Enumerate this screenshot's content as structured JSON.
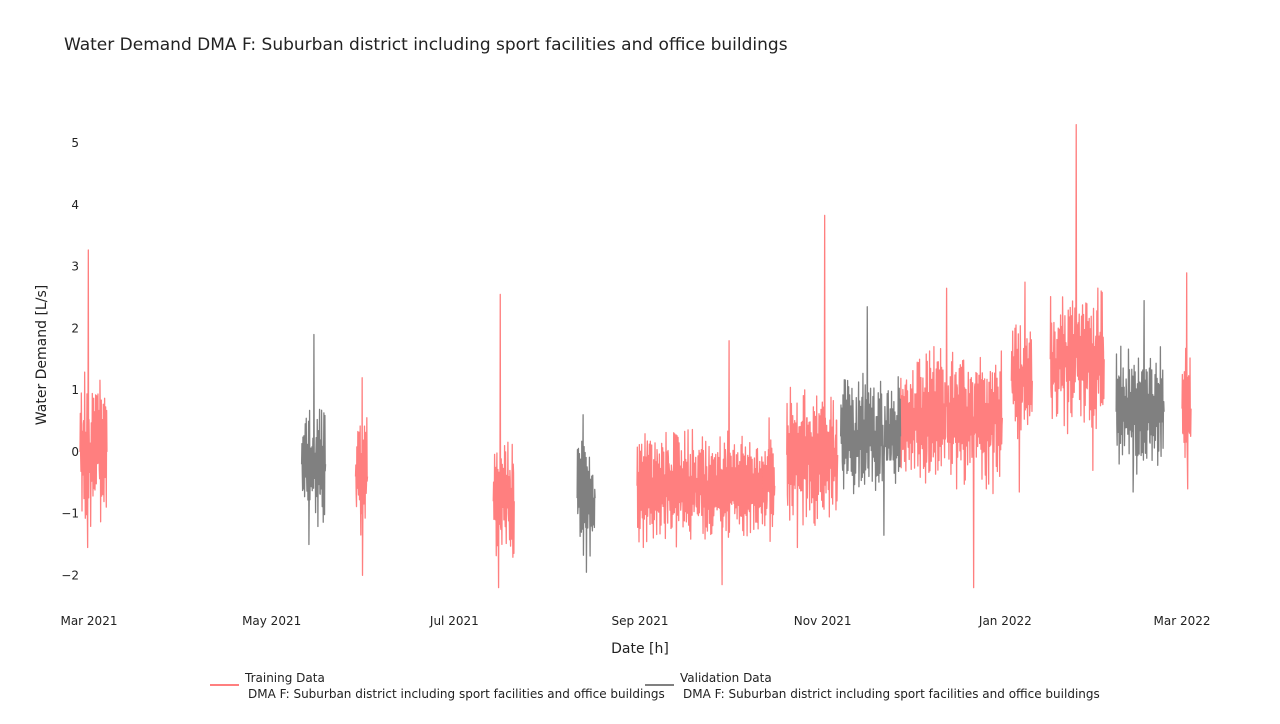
{
  "chart_data": {
    "type": "line",
    "title": "Water Demand DMA F: Suburban district including sport facilities and office buildings",
    "xlabel": "Date [h]",
    "ylabel": "Water Demand [L/s]",
    "x_range": [
      "2021-02-26",
      "2022-03-07"
    ],
    "ylim": [
      -2.4,
      5.7
    ],
    "x_ticks": [
      {
        "date": "2021-03-01",
        "label": "Mar 2021"
      },
      {
        "date": "2021-05-01",
        "label": "May 2021"
      },
      {
        "date": "2021-07-01",
        "label": "Jul 2021"
      },
      {
        "date": "2021-09-01",
        "label": "Sep 2021"
      },
      {
        "date": "2021-11-01",
        "label": "Nov 2021"
      },
      {
        "date": "2022-01-01",
        "label": "Jan 2022"
      },
      {
        "date": "2022-03-01",
        "label": "Mar 2022"
      }
    ],
    "y_ticks": [
      -2,
      -1,
      0,
      1,
      2,
      3,
      4,
      5
    ],
    "grid": false,
    "legend_position": "bottom",
    "series": [
      {
        "name": "Training Data",
        "subtitle": "DMA F: Suburban district including sport facilities and office buildings",
        "color": "#ff7f7f",
        "segments": [
          {
            "start": "2021-02-26",
            "end": "2021-03-07",
            "min": -1.55,
            "max": 3.27,
            "base": 0.0,
            "amp": 1.0
          },
          {
            "start": "2021-05-29",
            "end": "2021-06-02",
            "min": -2.0,
            "max": 1.2,
            "base": -0.4,
            "amp": 0.8
          },
          {
            "start": "2021-07-14",
            "end": "2021-07-21",
            "min": -2.2,
            "max": 2.55,
            "base": -0.8,
            "amp": 0.8
          },
          {
            "start": "2021-08-31",
            "end": "2021-10-12",
            "min": -2.15,
            "max": 1.8,
            "base": -0.55,
            "amp": 0.75
          },
          {
            "start": "2021-10-12",
            "end": "2021-10-16",
            "min": -1.45,
            "max": 0.55,
            "base": -0.55,
            "amp": 0.6
          },
          {
            "start": "2021-10-20",
            "end": "2021-11-06",
            "min": -1.55,
            "max": 3.83,
            "base": -0.05,
            "amp": 0.9
          },
          {
            "start": "2021-11-27",
            "end": "2021-12-31",
            "min": -2.2,
            "max": 2.65,
            "base": 0.55,
            "amp": 0.9
          },
          {
            "start": "2022-01-03",
            "end": "2022-01-10",
            "min": -0.65,
            "max": 2.75,
            "base": 1.15,
            "amp": 0.75
          },
          {
            "start": "2022-01-16",
            "end": "2022-02-03",
            "min": -0.3,
            "max": 5.3,
            "base": 1.5,
            "amp": 0.9
          },
          {
            "start": "2022-03-01",
            "end": "2022-03-04",
            "min": -0.6,
            "max": 2.9,
            "base": 0.7,
            "amp": 0.8
          }
        ]
      },
      {
        "name": "Validation Data",
        "subtitle": "DMA F: Suburban district including sport facilities and office buildings",
        "color": "#808080",
        "segments": [
          {
            "start": "2021-05-11",
            "end": "2021-05-19",
            "min": -1.5,
            "max": 1.9,
            "base": -0.2,
            "amp": 0.75
          },
          {
            "start": "2021-08-11",
            "end": "2021-08-17",
            "min": -1.95,
            "max": 0.6,
            "base": -0.75,
            "amp": 0.75
          },
          {
            "start": "2021-11-07",
            "end": "2021-11-27",
            "min": -1.35,
            "max": 2.35,
            "base": 0.25,
            "amp": 0.8
          },
          {
            "start": "2022-02-07",
            "end": "2022-02-23",
            "min": -0.65,
            "max": 2.45,
            "base": 0.65,
            "amp": 0.8
          }
        ]
      }
    ]
  }
}
